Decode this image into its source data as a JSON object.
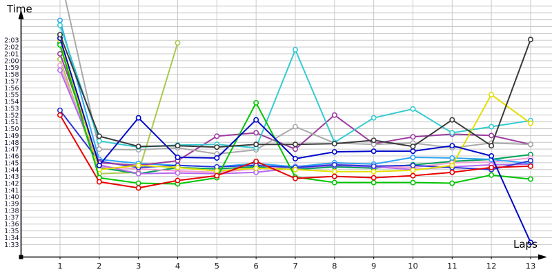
{
  "chart": {
    "y_axis_title": "Time",
    "x_axis_title": "Laps",
    "y_tick_labels_top_to_bottom": [
      "2:03",
      "2:02",
      "2:01",
      "2:00",
      "1:59",
      "1:58",
      "1:57",
      "1:56",
      "1:55",
      "1:54",
      "1:53",
      "1:52",
      "1:51",
      "1:50",
      "1:49",
      "1:48",
      "1:47",
      "1:46",
      "1:45",
      "1:44",
      "1:43",
      "1:42",
      "1:41",
      "1:40",
      "1:39",
      "1:38",
      "1:37",
      "1:36",
      "1:35",
      "1:34",
      "1:33"
    ],
    "x_tick_labels": [
      "1",
      "2",
      "3",
      "4",
      "5",
      "6",
      "7",
      "8",
      "9",
      "10",
      "11",
      "12",
      "13"
    ],
    "grid_color": "#c9c9c9",
    "axis_color": "#000000",
    "background_color": "#ffffff"
  },
  "chart_data": {
    "type": "line",
    "title": "",
    "xlabel": "Laps",
    "ylabel": "Time",
    "x": [
      1,
      2,
      3,
      4,
      5,
      6,
      7,
      8,
      9,
      10,
      11,
      12,
      13
    ],
    "values_unit": "lap time in seconds (e.g. 103.0 = 1:43); null = no lap recorded",
    "y_labeled_range_seconds": [
      93,
      123
    ],
    "grid": true,
    "legend": "none (series identified by line color only)",
    "marker": "open-circle",
    "series": [
      {
        "name": "olive-green",
        "color": "#a9c84e",
        "values": [
          120.2,
          103.4,
          103.6,
          122.6,
          null,
          null,
          null,
          null,
          null,
          null,
          null,
          null,
          null
        ]
      },
      {
        "name": "dark-green",
        "color": "#00a058",
        "values": [
          122.6,
          104.3,
          103.4,
          104.3,
          104.1,
          104.4,
          104.0,
          104.4,
          104.2,
          104.7,
          105.2,
          105.5,
          106.2
        ]
      },
      {
        "name": "pink",
        "color": "#f79fd0",
        "values": [
          119.3,
          104.4,
          104.1,
          103.8,
          103.6,
          104.1,
          104.5,
          104.8,
          104.5,
          104.3,
          105.0,
          105.1,
          105.7
        ]
      },
      {
        "name": "violet",
        "color": "#b469f0",
        "values": [
          118.6,
          104.7,
          103.4,
          103.5,
          103.4,
          103.6,
          104.2,
          104.6,
          104.4,
          104.0,
          104.4,
          104.7,
          104.8
        ]
      },
      {
        "name": "light-blue",
        "color": "#2ea6f5",
        "values": [
          125.9,
          105.5,
          104.9,
          104.6,
          104.4,
          104.9,
          104.4,
          105.0,
          104.8,
          105.8,
          105.7,
          105.5,
          104.9
        ]
      },
      {
        "name": "royal-blue",
        "color": "#2b38d8",
        "values": [
          112.7,
          105.2,
          104.3,
          104.6,
          104.4,
          104.6,
          104.3,
          104.7,
          104.5,
          104.6,
          104.3,
          104.0,
          105.3
        ]
      },
      {
        "name": "purple",
        "color": "#9d3ba0",
        "values": [
          121.0,
          105.0,
          104.6,
          105.3,
          108.9,
          109.4,
          107.0,
          112.0,
          107.8,
          108.8,
          109.2,
          109.0,
          107.7
        ]
      },
      {
        "name": "gray",
        "color": "#a9a9a9",
        "values": [
          132.5,
          107.0,
          106.9,
          107.2,
          106.3,
          106.9,
          110.3,
          107.9,
          107.7,
          107.9,
          107.2,
          107.9,
          107.7
        ]
      },
      {
        "name": "turquoise",
        "color": "#35cbd0",
        "values": [
          125.2,
          108.2,
          107.3,
          107.6,
          107.7,
          107.2,
          121.6,
          108.0,
          111.6,
          112.9,
          109.4,
          110.3,
          111.2
        ]
      },
      {
        "name": "yellow",
        "color": "#e3de00",
        "values": [
          123.0,
          104.0,
          104.6,
          104.3,
          103.8,
          104.2,
          104.0,
          103.7,
          103.7,
          103.9,
          104.6,
          115.0,
          110.8
        ]
      },
      {
        "name": "green",
        "color": "#00c400",
        "values": [
          122.3,
          102.8,
          102.0,
          101.9,
          102.8,
          113.8,
          102.9,
          102.1,
          102.1,
          102.1,
          102.0,
          103.2,
          102.6
        ]
      },
      {
        "name": "red",
        "color": "#e80000",
        "values": [
          112.0,
          102.2,
          101.3,
          102.4,
          103.1,
          105.2,
          102.7,
          103.0,
          102.8,
          103.1,
          103.6,
          104.3,
          104.5
        ]
      },
      {
        "name": "navy-blue",
        "color": "#0008c8",
        "values": [
          123.3,
          104.6,
          111.6,
          105.8,
          105.7,
          111.3,
          105.6,
          106.6,
          106.7,
          106.7,
          107.5,
          106.0,
          93.3
        ]
      },
      {
        "name": "black",
        "color": "#3a3a3a",
        "values": [
          123.8,
          108.9,
          107.4,
          107.5,
          107.3,
          107.7,
          107.7,
          107.8,
          108.3,
          107.4,
          111.3,
          107.5,
          123.1
        ]
      }
    ]
  }
}
